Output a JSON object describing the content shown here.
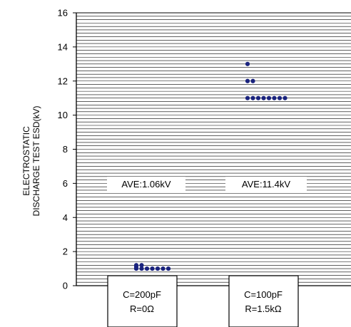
{
  "chart_data": {
    "type": "scatter",
    "ylabel_lines": [
      "ELECTROSTATIC",
      "DISCHARGE TEST ESD(kV)"
    ],
    "ylim": [
      0,
      16
    ],
    "yticks": [
      "0",
      "2",
      "4",
      "6",
      "8",
      "10",
      "12",
      "14",
      "16"
    ],
    "grid": true,
    "marker_color": "#1a237e",
    "categories": [
      {
        "lines": [
          "C=200pF",
          "R=0Ω"
        ],
        "annotation": "AVE:1.06kV"
      },
      {
        "lines": [
          "C=100pF",
          "R=1.5kΩ"
        ],
        "annotation": "AVE:11.4kV"
      }
    ],
    "series": [
      {
        "values": [
          1.2,
          1.2,
          1.1,
          1.0,
          1.0,
          1.0,
          1.0,
          1.0,
          1.0,
          1.0
        ]
      },
      {
        "values": [
          13,
          12,
          12,
          11,
          11,
          11,
          11,
          11,
          11,
          11,
          11
        ]
      }
    ]
  }
}
